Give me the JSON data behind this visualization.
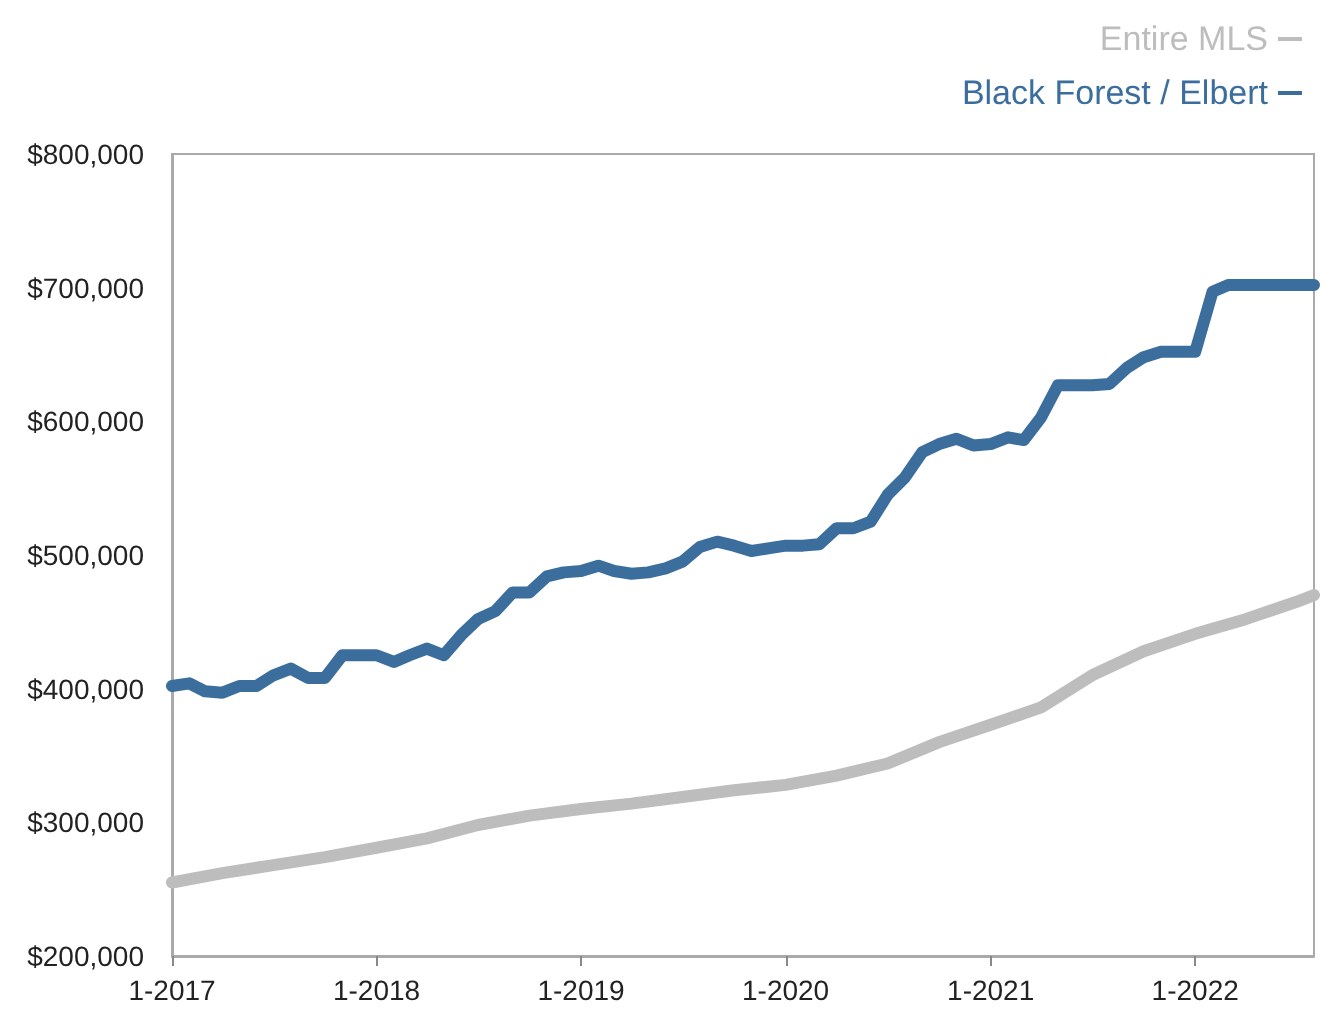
{
  "chart_data": {
    "type": "line",
    "legend": "top right",
    "grid": false,
    "line_style": "solid",
    "marker": "none",
    "xlim": [
      "2017-01",
      "2022-08"
    ],
    "xticks": [
      {
        "value": "2017-01",
        "label": "1-2017"
      },
      {
        "value": "2018-01",
        "label": "1-2018"
      },
      {
        "value": "2019-01",
        "label": "1-2019"
      },
      {
        "value": "2020-01",
        "label": "1-2020"
      },
      {
        "value": "2021-01",
        "label": "1-2021"
      },
      {
        "value": "2022-01",
        "label": "1-2022"
      }
    ],
    "ylim": [
      200000,
      800000
    ],
    "yticks": [
      {
        "value": 200000,
        "label": "$200,000"
      },
      {
        "value": 300000,
        "label": "$300,000"
      },
      {
        "value": 400000,
        "label": "$400,000"
      },
      {
        "value": 500000,
        "label": "$500,000"
      },
      {
        "value": 600000,
        "label": "$600,000"
      },
      {
        "value": 700000,
        "label": "$700,000"
      },
      {
        "value": 800000,
        "label": "$800,000"
      }
    ],
    "series": [
      {
        "name": "Entire MLS",
        "color": "#bdbdbd",
        "x": [
          "2017-01",
          "2017-04",
          "2017-07",
          "2017-10",
          "2018-01",
          "2018-04",
          "2018-07",
          "2018-10",
          "2019-01",
          "2019-04",
          "2019-07",
          "2019-10",
          "2020-01",
          "2020-04",
          "2020-07",
          "2020-10",
          "2021-01",
          "2021-04",
          "2021-07",
          "2021-10",
          "2022-01",
          "2022-04",
          "2022-07",
          "2022-08"
        ],
        "values": [
          255000,
          262000,
          268000,
          274000,
          281000,
          288000,
          298000,
          305000,
          310000,
          314000,
          319000,
          324000,
          328000,
          335000,
          344000,
          360000,
          373000,
          386000,
          410000,
          428000,
          441000,
          452000,
          465000,
          470000
        ]
      },
      {
        "name": "Black Forest / Elbert",
        "color": "#3b6e9c",
        "x": [
          "2017-01",
          "2017-02",
          "2017-03",
          "2017-04",
          "2017-05",
          "2017-06",
          "2017-07",
          "2017-08",
          "2017-09",
          "2017-10",
          "2017-11",
          "2017-12",
          "2018-01",
          "2018-02",
          "2018-03",
          "2018-04",
          "2018-05",
          "2018-06",
          "2018-07",
          "2018-08",
          "2018-09",
          "2018-10",
          "2018-11",
          "2018-12",
          "2019-01",
          "2019-02",
          "2019-03",
          "2019-04",
          "2019-05",
          "2019-06",
          "2019-07",
          "2019-08",
          "2019-09",
          "2019-10",
          "2019-11",
          "2019-12",
          "2020-01",
          "2020-02",
          "2020-03",
          "2020-04",
          "2020-05",
          "2020-06",
          "2020-07",
          "2020-08",
          "2020-09",
          "2020-10",
          "2020-11",
          "2020-12",
          "2021-01",
          "2021-02",
          "2021-03",
          "2021-04",
          "2021-05",
          "2021-06",
          "2021-07",
          "2021-08",
          "2021-09",
          "2021-10",
          "2021-11",
          "2021-12",
          "2022-01",
          "2022-02",
          "2022-03",
          "2022-04",
          "2022-05",
          "2022-06",
          "2022-07",
          "2022-08"
        ],
        "values": [
          402000,
          404000,
          398000,
          397000,
          402000,
          402000,
          410000,
          415000,
          408000,
          408000,
          425000,
          425000,
          425000,
          420000,
          425000,
          430000,
          425000,
          440000,
          452000,
          458000,
          472000,
          472000,
          484000,
          487000,
          488000,
          492000,
          488000,
          486000,
          487000,
          490000,
          495000,
          506000,
          510000,
          507000,
          503000,
          505000,
          507000,
          507000,
          508000,
          520000,
          520000,
          525000,
          545000,
          558000,
          577000,
          583000,
          587000,
          582000,
          583000,
          588000,
          586000,
          603000,
          627000,
          627000,
          627000,
          628000,
          640000,
          648000,
          652000,
          652000,
          652000,
          697000,
          702000,
          702000,
          702000,
          702000,
          702000,
          702000
        ]
      }
    ]
  }
}
